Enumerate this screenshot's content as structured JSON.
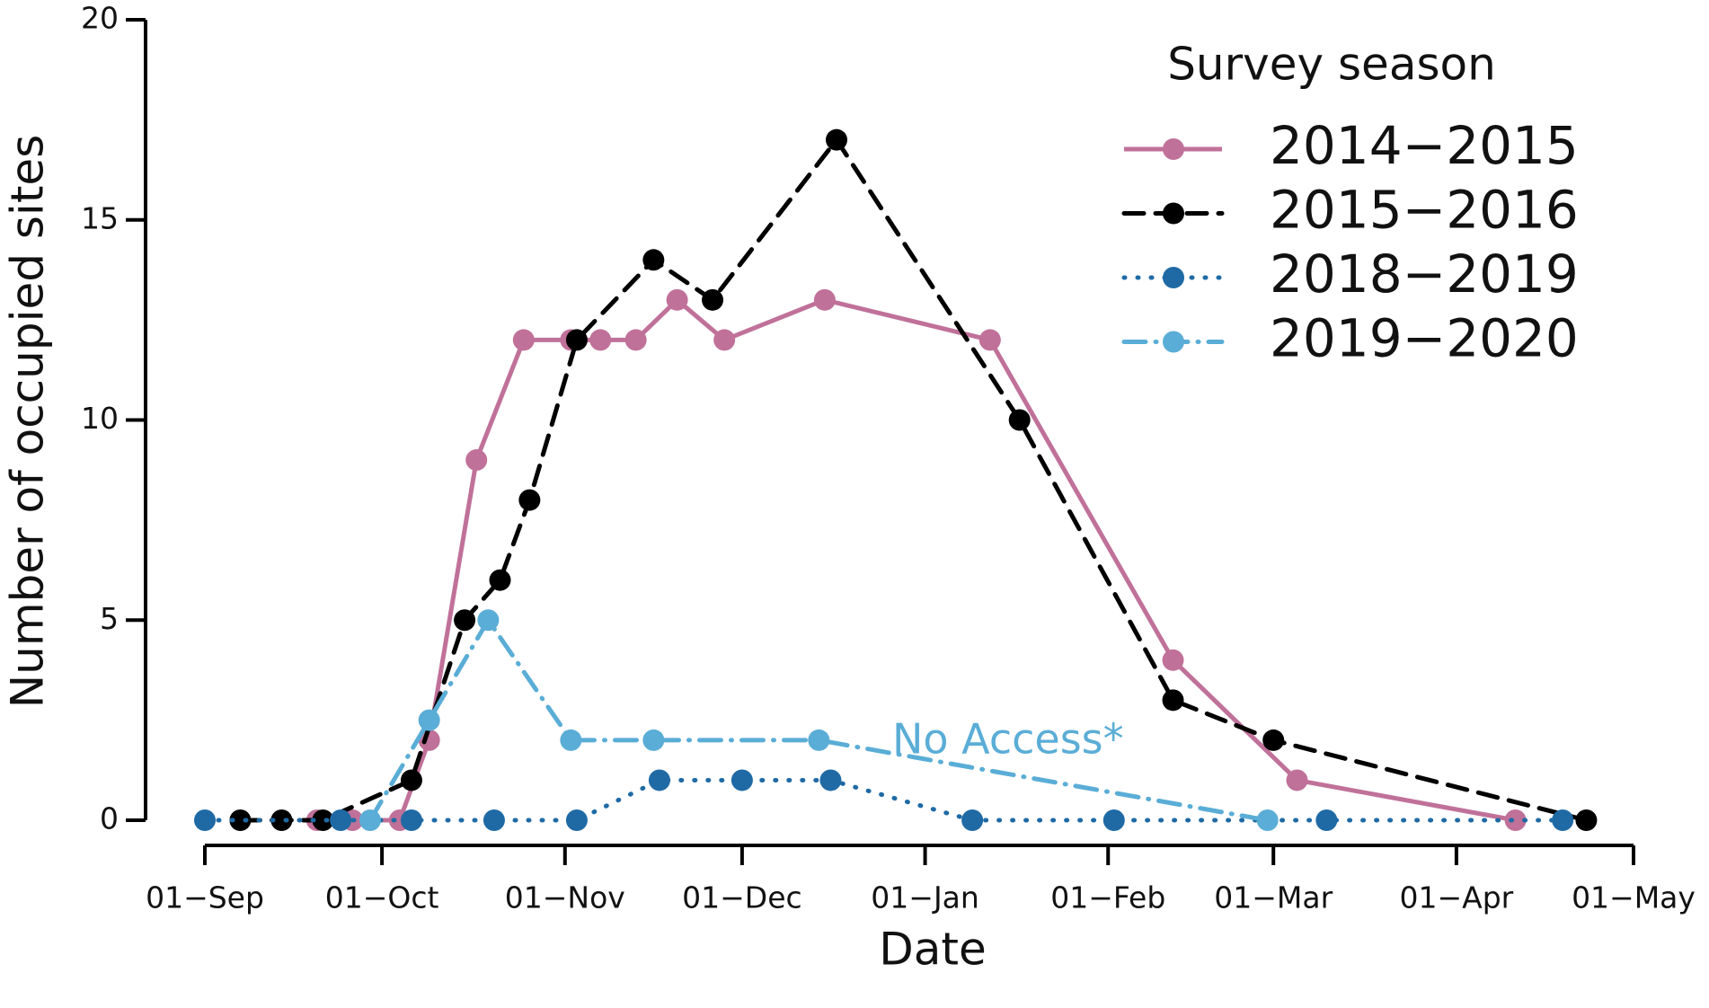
{
  "chart_data": {
    "type": "line",
    "xlabel": "Date",
    "ylabel": "Number of occupied sites",
    "legend_title": "Survey season",
    "legend": "upper right",
    "annotation": "No Access*",
    "xlim": [
      0,
      242
    ],
    "ylim": [
      0,
      20
    ],
    "xticks": [
      {
        "value": 0,
        "label": "01−Sep"
      },
      {
        "value": 30,
        "label": "01−Oct"
      },
      {
        "value": 61,
        "label": "01−Nov"
      },
      {
        "value": 91,
        "label": "01−Dec"
      },
      {
        "value": 122,
        "label": "01−Jan"
      },
      {
        "value": 153,
        "label": "01−Feb"
      },
      {
        "value": 181,
        "label": "01−Mar"
      },
      {
        "value": 212,
        "label": "01−Apr"
      },
      {
        "value": 242,
        "label": "01−May"
      }
    ],
    "yticks": [
      0,
      5,
      10,
      15,
      20
    ],
    "series": [
      {
        "name": "2014−2015",
        "color": "#c07199",
        "style": "solid",
        "x": [
          19,
          25,
          33,
          38,
          46,
          54,
          62,
          67,
          73,
          80,
          88,
          105,
          133,
          164,
          185,
          222
        ],
        "values": [
          0,
          0,
          0,
          2,
          9,
          12,
          12,
          12,
          12,
          13,
          12,
          13,
          12,
          4,
          1,
          0
        ]
      },
      {
        "name": "2015−2016",
        "color": "#000000",
        "style": "dashed",
        "x": [
          6,
          13,
          20,
          35,
          44,
          50,
          55,
          63,
          76,
          86,
          107,
          138,
          164,
          181,
          234
        ],
        "values": [
          0,
          0,
          0,
          1,
          5,
          6,
          8,
          12,
          14,
          13,
          17,
          10,
          3,
          2,
          0
        ]
      },
      {
        "name": "2018−2019",
        "color": "#1f6aa5",
        "style": "dotted",
        "x": [
          0,
          23,
          35,
          49,
          63,
          77,
          91,
          106,
          130,
          154,
          190,
          230
        ],
        "values": [
          0,
          0,
          0,
          0,
          0,
          1,
          1,
          1,
          0,
          0,
          0,
          0
        ]
      },
      {
        "name": "2019−2020",
        "color": "#5aadd6",
        "style": "dashdot",
        "x": [
          28,
          38,
          48,
          62,
          76,
          104,
          180
        ],
        "values": [
          0,
          2.5,
          5,
          2,
          2,
          2,
          0
        ]
      }
    ]
  }
}
